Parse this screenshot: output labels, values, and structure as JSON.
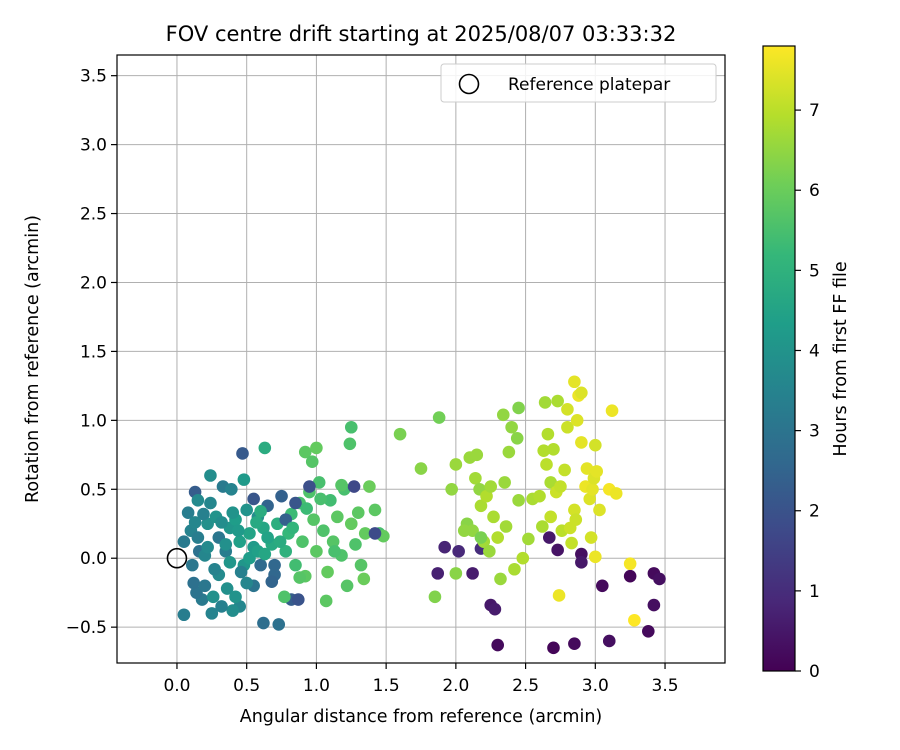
{
  "chart_data": {
    "type": "scatter",
    "title": "FOV centre drift starting at 2025/08/07 03:33:32",
    "xlabel": "Angular distance from reference (arcmin)",
    "ylabel": "Rotation from reference (arcmin)",
    "xlim": [
      -0.43,
      3.93
    ],
    "ylim": [
      -0.76,
      3.65
    ],
    "xticks": [
      "0.0",
      "0.5",
      "1.0",
      "1.5",
      "2.0",
      "2.5",
      "3.0",
      "3.5"
    ],
    "yticks": [
      "−0.5",
      "0.0",
      "0.5",
      "1.0",
      "1.5",
      "2.0",
      "2.5",
      "3.0",
      "3.5"
    ],
    "grid": true,
    "legend": {
      "position": "top-right",
      "label": "Reference platepar"
    },
    "reference_point": {
      "x": 0.0,
      "y": 0.0
    },
    "colorbar": {
      "label": "Hours from first FF file",
      "range": [
        0,
        7.8
      ],
      "ticks": [
        "0",
        "1",
        "2",
        "3",
        "4",
        "5",
        "6",
        "7"
      ],
      "colormap": [
        "#440154",
        "#482878",
        "#3e4989",
        "#31688e",
        "#26828e",
        "#1f9e89",
        "#35b779",
        "#6ece58",
        "#b5de2b",
        "#fde725"
      ]
    },
    "points": [
      {
        "x": 2.3,
        "y": -0.63,
        "h": 0.2
      },
      {
        "x": 2.7,
        "y": -0.65,
        "h": 0.1
      },
      {
        "x": 2.85,
        "y": -0.62,
        "h": 0.2
      },
      {
        "x": 3.1,
        "y": -0.6,
        "h": 0.3
      },
      {
        "x": 3.38,
        "y": -0.53,
        "h": 0.2
      },
      {
        "x": 3.42,
        "y": -0.34,
        "h": 0.3
      },
      {
        "x": 2.25,
        "y": -0.34,
        "h": 0.5
      },
      {
        "x": 2.28,
        "y": -0.37,
        "h": 0.6
      },
      {
        "x": 1.87,
        "y": -0.11,
        "h": 0.7
      },
      {
        "x": 2.12,
        "y": -0.11,
        "h": 0.6
      },
      {
        "x": 1.92,
        "y": 0.08,
        "h": 0.8
      },
      {
        "x": 2.02,
        "y": 0.05,
        "h": 0.9
      },
      {
        "x": 2.18,
        "y": 0.07,
        "h": 1.0
      },
      {
        "x": 2.73,
        "y": 0.06,
        "h": 0.4
      },
      {
        "x": 2.9,
        "y": 0.03,
        "h": 0.3
      },
      {
        "x": 2.9,
        "y": -0.03,
        "h": 0.5
      },
      {
        "x": 3.05,
        "y": -0.2,
        "h": 0.2
      },
      {
        "x": 3.25,
        "y": -0.13,
        "h": 0.1
      },
      {
        "x": 3.42,
        "y": -0.11,
        "h": 0.2
      },
      {
        "x": 3.46,
        "y": -0.15,
        "h": 0.3
      },
      {
        "x": 2.67,
        "y": 0.15,
        "h": 0.5
      },
      {
        "x": 0.47,
        "y": 0.76,
        "h": 2.2
      },
      {
        "x": 0.55,
        "y": 0.43,
        "h": 2.1
      },
      {
        "x": 0.13,
        "y": 0.48,
        "h": 2.3
      },
      {
        "x": 0.15,
        "y": 0.42,
        "h": 3.7
      },
      {
        "x": 0.24,
        "y": 0.6,
        "h": 3.8
      },
      {
        "x": 0.48,
        "y": 0.57,
        "h": 4.2
      },
      {
        "x": 0.33,
        "y": 0.52,
        "h": 3.2
      },
      {
        "x": 0.39,
        "y": 0.5,
        "h": 3.5
      },
      {
        "x": 0.63,
        "y": 0.8,
        "h": 4.8
      },
      {
        "x": 0.92,
        "y": 0.77,
        "h": 5.8
      },
      {
        "x": 1.0,
        "y": 0.8,
        "h": 5.9
      },
      {
        "x": 0.97,
        "y": 0.7,
        "h": 5.7
      },
      {
        "x": 1.25,
        "y": 0.95,
        "h": 5.5
      },
      {
        "x": 1.24,
        "y": 0.83,
        "h": 5.6
      },
      {
        "x": 0.08,
        "y": 0.33,
        "h": 3.3
      },
      {
        "x": 0.05,
        "y": 0.12,
        "h": 3.2
      },
      {
        "x": 0.1,
        "y": 0.2,
        "h": 3.5
      },
      {
        "x": 0.16,
        "y": 0.05,
        "h": 2.9
      },
      {
        "x": 0.2,
        "y": 0.02,
        "h": 3.6
      },
      {
        "x": 0.22,
        "y": 0.25,
        "h": 3.9
      },
      {
        "x": 0.28,
        "y": 0.3,
        "h": 4.0
      },
      {
        "x": 0.3,
        "y": 0.15,
        "h": 3.1
      },
      {
        "x": 0.35,
        "y": 0.05,
        "h": 3.3
      },
      {
        "x": 0.38,
        "y": 0.22,
        "h": 4.1
      },
      {
        "x": 0.42,
        "y": 0.28,
        "h": 4.3
      },
      {
        "x": 0.45,
        "y": 0.12,
        "h": 4.4
      },
      {
        "x": 0.5,
        "y": 0.35,
        "h": 4.0
      },
      {
        "x": 0.52,
        "y": 0.18,
        "h": 4.5
      },
      {
        "x": 0.55,
        "y": 0.08,
        "h": 4.2
      },
      {
        "x": 0.58,
        "y": 0.3,
        "h": 3.8
      },
      {
        "x": 0.6,
        "y": -0.05,
        "h": 2.7
      },
      {
        "x": 0.62,
        "y": 0.22,
        "h": 4.6
      },
      {
        "x": 0.65,
        "y": 0.38,
        "h": 2.5
      },
      {
        "x": 0.68,
        "y": 0.1,
        "h": 4.7
      },
      {
        "x": 0.7,
        "y": -0.12,
        "h": 2.6
      },
      {
        "x": 0.72,
        "y": 0.25,
        "h": 4.9
      },
      {
        "x": 0.75,
        "y": 0.45,
        "h": 2.4
      },
      {
        "x": 0.78,
        "y": 0.05,
        "h": 5.0
      },
      {
        "x": 0.8,
        "y": 0.18,
        "h": 5.2
      },
      {
        "x": 0.82,
        "y": 0.32,
        "h": 5.3
      },
      {
        "x": 0.85,
        "y": -0.05,
        "h": 5.4
      },
      {
        "x": 0.88,
        "y": 0.4,
        "h": 5.5
      },
      {
        "x": 0.9,
        "y": 0.12,
        "h": 5.6
      },
      {
        "x": 0.92,
        "y": -0.13,
        "h": 5.8
      },
      {
        "x": 0.95,
        "y": 0.48,
        "h": 5.6
      },
      {
        "x": 0.98,
        "y": 0.28,
        "h": 5.7
      },
      {
        "x": 1.0,
        "y": 0.05,
        "h": 5.8
      },
      {
        "x": 1.02,
        "y": 0.55,
        "h": 5.5
      },
      {
        "x": 1.05,
        "y": 0.2,
        "h": 5.6
      },
      {
        "x": 1.08,
        "y": -0.1,
        "h": 5.9
      },
      {
        "x": 1.1,
        "y": 0.42,
        "h": 5.4
      },
      {
        "x": 1.12,
        "y": 0.12,
        "h": 5.7
      },
      {
        "x": 1.15,
        "y": 0.3,
        "h": 5.8
      },
      {
        "x": 1.18,
        "y": 0.02,
        "h": 5.6
      },
      {
        "x": 1.2,
        "y": 0.5,
        "h": 5.5
      },
      {
        "x": 1.22,
        "y": -0.2,
        "h": 5.7
      },
      {
        "x": 1.25,
        "y": 0.25,
        "h": 5.9
      },
      {
        "x": 1.28,
        "y": 0.1,
        "h": 5.6
      },
      {
        "x": 1.3,
        "y": 0.33,
        "h": 5.8
      },
      {
        "x": 1.32,
        "y": -0.05,
        "h": 5.7
      },
      {
        "x": 1.35,
        "y": 0.18,
        "h": 5.9
      },
      {
        "x": 1.38,
        "y": 0.52,
        "h": 6.0
      },
      {
        "x": 1.42,
        "y": 0.35,
        "h": 5.8
      },
      {
        "x": 1.45,
        "y": 0.18,
        "h": 5.5
      },
      {
        "x": 1.48,
        "y": 0.16,
        "h": 5.9
      },
      {
        "x": 1.34,
        "y": -0.15,
        "h": 6.0
      },
      {
        "x": 1.27,
        "y": 0.52,
        "h": 1.7
      },
      {
        "x": 1.42,
        "y": 0.18,
        "h": 1.8
      },
      {
        "x": 0.62,
        "y": -0.47,
        "h": 2.8
      },
      {
        "x": 0.73,
        "y": -0.48,
        "h": 2.9
      },
      {
        "x": 0.82,
        "y": -0.3,
        "h": 2.3
      },
      {
        "x": 0.87,
        "y": -0.3,
        "h": 2.0
      },
      {
        "x": 0.95,
        "y": 0.52,
        "h": 1.9
      },
      {
        "x": 0.85,
        "y": 0.4,
        "h": 2.1
      },
      {
        "x": 0.78,
        "y": 0.28,
        "h": 2.4
      },
      {
        "x": 0.7,
        "y": -0.05,
        "h": 2.6
      },
      {
        "x": 0.68,
        "y": -0.17,
        "h": 2.5
      },
      {
        "x": 0.55,
        "y": -0.2,
        "h": 3.0
      },
      {
        "x": 0.45,
        "y": -0.35,
        "h": 3.6
      },
      {
        "x": 0.4,
        "y": -0.38,
        "h": 3.8
      },
      {
        "x": 0.32,
        "y": -0.35,
        "h": 3.4
      },
      {
        "x": 0.25,
        "y": -0.4,
        "h": 3.5
      },
      {
        "x": 0.18,
        "y": -0.3,
        "h": 3.2
      },
      {
        "x": 0.14,
        "y": -0.25,
        "h": 3.0
      },
      {
        "x": 0.12,
        "y": -0.18,
        "h": 2.9
      },
      {
        "x": 0.11,
        "y": -0.05,
        "h": 3.1
      },
      {
        "x": 0.15,
        "y": 0.15,
        "h": 3.3
      },
      {
        "x": 0.19,
        "y": 0.32,
        "h": 3.4
      },
      {
        "x": 0.24,
        "y": 0.4,
        "h": 3.6
      },
      {
        "x": 0.3,
        "y": -0.12,
        "h": 3.7
      },
      {
        "x": 0.36,
        "y": -0.22,
        "h": 3.9
      },
      {
        "x": 0.42,
        "y": -0.28,
        "h": 4.0
      },
      {
        "x": 0.48,
        "y": -0.05,
        "h": 4.1
      },
      {
        "x": 0.52,
        "y": 0.0,
        "h": 4.3
      },
      {
        "x": 0.58,
        "y": 0.05,
        "h": 4.4
      },
      {
        "x": 0.65,
        "y": 0.15,
        "h": 4.5
      },
      {
        "x": 0.05,
        "y": -0.41,
        "h": 3.3
      },
      {
        "x": 0.2,
        "y": -0.2,
        "h": 3.1
      },
      {
        "x": 0.27,
        "y": -0.08,
        "h": 3.5
      },
      {
        "x": 0.35,
        "y": 0.1,
        "h": 3.9
      },
      {
        "x": 0.44,
        "y": 0.2,
        "h": 4.2
      },
      {
        "x": 0.5,
        "y": -0.18,
        "h": 3.6
      },
      {
        "x": 0.57,
        "y": 0.26,
        "h": 4.7
      },
      {
        "x": 0.63,
        "y": 0.03,
        "h": 4.6
      },
      {
        "x": 0.74,
        "y": 0.12,
        "h": 4.8
      },
      {
        "x": 0.77,
        "y": -0.28,
        "h": 5.6
      },
      {
        "x": 0.88,
        "y": -0.14,
        "h": 5.7
      },
      {
        "x": 1.07,
        "y": -0.31,
        "h": 5.8
      },
      {
        "x": 1.18,
        "y": 0.53,
        "h": 5.7
      },
      {
        "x": 0.22,
        "y": 0.08,
        "h": 3.7
      },
      {
        "x": 0.32,
        "y": 0.26,
        "h": 3.8
      },
      {
        "x": 0.4,
        "y": 0.33,
        "h": 4.0
      },
      {
        "x": 0.46,
        "y": -0.1,
        "h": 3.4
      },
      {
        "x": 0.13,
        "y": 0.26,
        "h": 3.6
      },
      {
        "x": 0.26,
        "y": -0.28,
        "h": 3.9
      },
      {
        "x": 0.38,
        "y": -0.03,
        "h": 4.1
      },
      {
        "x": 0.6,
        "y": 0.34,
        "h": 4.8
      },
      {
        "x": 0.83,
        "y": 0.22,
        "h": 5.1
      },
      {
        "x": 0.93,
        "y": 0.36,
        "h": 5.3
      },
      {
        "x": 1.03,
        "y": 0.43,
        "h": 5.5
      },
      {
        "x": 1.13,
        "y": 0.05,
        "h": 5.5
      },
      {
        "x": 1.6,
        "y": 0.9,
        "h": 6.2
      },
      {
        "x": 1.75,
        "y": 0.65,
        "h": 6.4
      },
      {
        "x": 1.85,
        "y": -0.28,
        "h": 6.3
      },
      {
        "x": 1.88,
        "y": 1.02,
        "h": 6.1
      },
      {
        "x": 1.97,
        "y": 0.5,
        "h": 6.5
      },
      {
        "x": 2.0,
        "y": -0.11,
        "h": 6.4
      },
      {
        "x": 2.0,
        "y": 0.68,
        "h": 6.6
      },
      {
        "x": 2.08,
        "y": 0.25,
        "h": 6.4
      },
      {
        "x": 2.1,
        "y": 0.73,
        "h": 6.6
      },
      {
        "x": 2.12,
        "y": 0.2,
        "h": 6.5
      },
      {
        "x": 2.14,
        "y": 0.58,
        "h": 6.7
      },
      {
        "x": 2.15,
        "y": 0.75,
        "h": 6.6
      },
      {
        "x": 2.17,
        "y": 0.5,
        "h": 6.5
      },
      {
        "x": 2.18,
        "y": 0.38,
        "h": 6.8
      },
      {
        "x": 2.2,
        "y": 0.12,
        "h": 6.7
      },
      {
        "x": 2.22,
        "y": 0.45,
        "h": 6.9
      },
      {
        "x": 2.24,
        "y": 0.05,
        "h": 6.6
      },
      {
        "x": 2.25,
        "y": 0.52,
        "h": 6.7
      },
      {
        "x": 2.27,
        "y": 0.3,
        "h": 6.8
      },
      {
        "x": 2.3,
        "y": 0.15,
        "h": 6.9
      },
      {
        "x": 2.32,
        "y": -0.15,
        "h": 6.6
      },
      {
        "x": 2.34,
        "y": 1.04,
        "h": 6.5
      },
      {
        "x": 2.35,
        "y": 0.55,
        "h": 6.6
      },
      {
        "x": 2.36,
        "y": 0.23,
        "h": 6.7
      },
      {
        "x": 2.38,
        "y": 0.77,
        "h": 6.6
      },
      {
        "x": 2.4,
        "y": 0.95,
        "h": 6.5
      },
      {
        "x": 2.42,
        "y": -0.08,
        "h": 6.8
      },
      {
        "x": 2.44,
        "y": 0.87,
        "h": 6.4
      },
      {
        "x": 2.45,
        "y": 1.09,
        "h": 6.3
      },
      {
        "x": 2.48,
        "y": 0.0,
        "h": 6.9
      },
      {
        "x": 2.45,
        "y": 0.42,
        "h": 6.6
      },
      {
        "x": 2.52,
        "y": 0.14,
        "h": 6.7
      },
      {
        "x": 2.55,
        "y": 0.43,
        "h": 6.8
      },
      {
        "x": 2.6,
        "y": 0.45,
        "h": 6.9
      },
      {
        "x": 2.62,
        "y": 0.23,
        "h": 6.8
      },
      {
        "x": 2.63,
        "y": 0.78,
        "h": 6.9
      },
      {
        "x": 2.64,
        "y": 1.13,
        "h": 6.7
      },
      {
        "x": 2.65,
        "y": 0.68,
        "h": 7.0
      },
      {
        "x": 2.66,
        "y": 0.9,
        "h": 6.9
      },
      {
        "x": 2.68,
        "y": 0.3,
        "h": 7.1
      },
      {
        "x": 2.68,
        "y": 0.55,
        "h": 6.8
      },
      {
        "x": 2.7,
        "y": 0.79,
        "h": 6.9
      },
      {
        "x": 2.72,
        "y": 0.48,
        "h": 7.2
      },
      {
        "x": 2.73,
        "y": 1.14,
        "h": 6.8
      },
      {
        "x": 2.74,
        "y": -0.27,
        "h": 7.6
      },
      {
        "x": 2.75,
        "y": 0.52,
        "h": 7.1
      },
      {
        "x": 2.76,
        "y": 0.2,
        "h": 7.0
      },
      {
        "x": 2.78,
        "y": 0.64,
        "h": 7.1
      },
      {
        "x": 2.8,
        "y": 0.95,
        "h": 7.2
      },
      {
        "x": 2.8,
        "y": 1.08,
        "h": 7.3
      },
      {
        "x": 2.82,
        "y": 0.22,
        "h": 7.2
      },
      {
        "x": 2.83,
        "y": 0.11,
        "h": 7.1
      },
      {
        "x": 2.85,
        "y": 1.28,
        "h": 7.5
      },
      {
        "x": 2.85,
        "y": 0.35,
        "h": 7.3
      },
      {
        "x": 2.86,
        "y": 0.28,
        "h": 7.2
      },
      {
        "x": 2.87,
        "y": 1.0,
        "h": 7.4
      },
      {
        "x": 2.88,
        "y": 1.18,
        "h": 7.6
      },
      {
        "x": 2.9,
        "y": 1.2,
        "h": 7.4
      },
      {
        "x": 2.9,
        "y": 0.84,
        "h": 7.5
      },
      {
        "x": 2.93,
        "y": 0.52,
        "h": 7.6
      },
      {
        "x": 2.94,
        "y": 0.65,
        "h": 7.5
      },
      {
        "x": 2.96,
        "y": 0.43,
        "h": 7.4
      },
      {
        "x": 2.97,
        "y": 0.15,
        "h": 7.3
      },
      {
        "x": 2.98,
        "y": 0.5,
        "h": 7.5
      },
      {
        "x": 2.99,
        "y": 0.58,
        "h": 7.4
      },
      {
        "x": 3.0,
        "y": 0.01,
        "h": 7.6
      },
      {
        "x": 3.0,
        "y": 0.82,
        "h": 7.3
      },
      {
        "x": 3.01,
        "y": 0.63,
        "h": 7.5
      },
      {
        "x": 3.03,
        "y": 0.35,
        "h": 7.4
      },
      {
        "x": 3.1,
        "y": 0.5,
        "h": 7.7
      },
      {
        "x": 3.12,
        "y": 1.07,
        "h": 7.6
      },
      {
        "x": 3.15,
        "y": 0.47,
        "h": 7.6
      },
      {
        "x": 3.25,
        "y": -0.04,
        "h": 7.7
      },
      {
        "x": 3.28,
        "y": -0.45,
        "h": 7.8
      },
      {
        "x": 2.18,
        "y": 0.15,
        "h": 6.2
      },
      {
        "x": 2.06,
        "y": 0.2,
        "h": 6.5
      }
    ]
  }
}
